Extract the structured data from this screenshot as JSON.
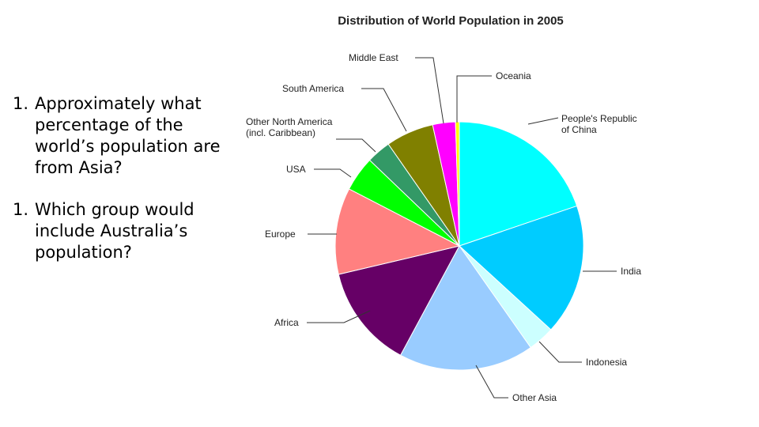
{
  "questions": [
    {
      "number": "1.",
      "text": "Approximately what percentage of the world’s population are from  Asia?"
    },
    {
      "number": "1.",
      "text": "Which group would include Australia’s population?"
    }
  ],
  "chart_data": {
    "type": "pie",
    "title": "Distribution of World Population in 2005",
    "slices": [
      {
        "label": "People's Republic of China",
        "value": 20.0,
        "color": "#00ffff"
      },
      {
        "label": "India",
        "value": 17.2,
        "color": "#00ccff"
      },
      {
        "label": "Indonesia",
        "value": 3.5,
        "color": "#ccffff"
      },
      {
        "label": "Other Asia",
        "value": 17.8,
        "color": "#99ccff"
      },
      {
        "label": "Africa",
        "value": 13.6,
        "color": "#660066"
      },
      {
        "label": "Europe",
        "value": 11.4,
        "color": "#ff8080"
      },
      {
        "label": "USA",
        "value": 4.6,
        "color": "#00ff00"
      },
      {
        "label": "Other North America (incl. Caribbean)",
        "value": 3.2,
        "color": "#339966"
      },
      {
        "label": "South America",
        "value": 6.3,
        "color": "#808000"
      },
      {
        "label": "Middle East",
        "value": 3.0,
        "color": "#ff00ff"
      },
      {
        "label": "Oceania",
        "value": 0.5,
        "color": "#ffff00"
      }
    ]
  }
}
